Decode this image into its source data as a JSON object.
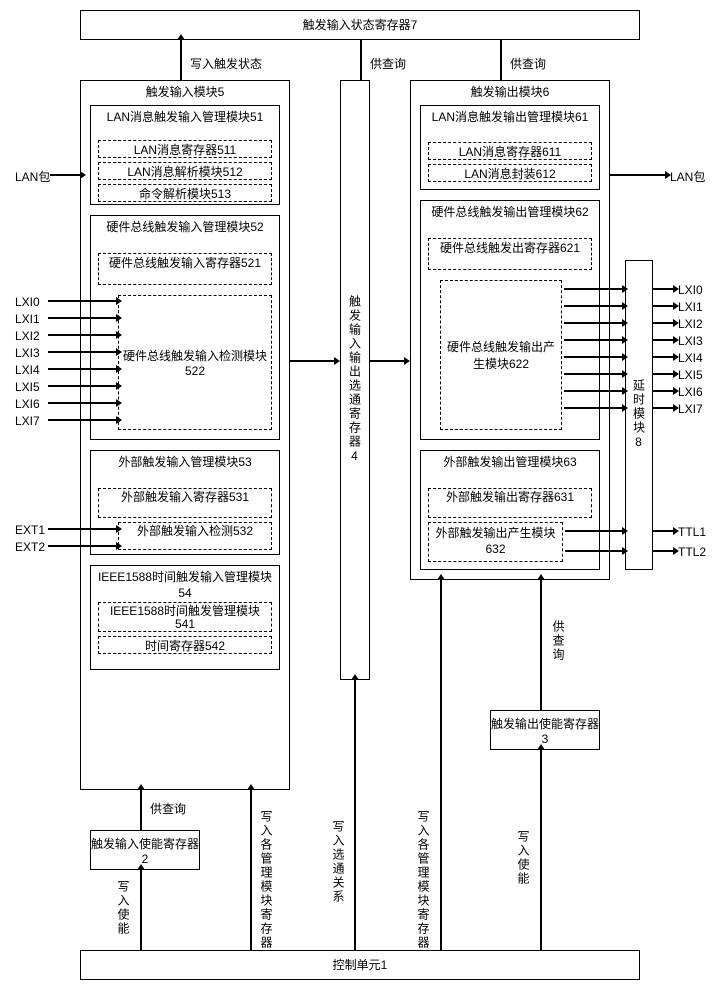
{
  "top_reg": "触发输入状态寄存器7",
  "write_state": "写入触发状态",
  "query": "供查询",
  "in_mod": "触发输入模块5",
  "lan_in": "LAN消息触发输入管理模块51",
  "lan_reg": "LAN消息寄存器511",
  "lan_parse": "LAN消息解析模块512",
  "cmd_parse": "命令解析模块513",
  "hw_in": "硬件总线触发输入管理模块52",
  "hw_in_reg": "硬件总线触发输入寄存器521",
  "hw_in_det": "硬件总线触发输入检测模块522",
  "ext_in": "外部触发输入管理模块53",
  "ext_in_reg": "外部触发输入寄存器531",
  "ext_in_det": "外部触发输入检测532",
  "ieee_in": "IEEE1588时间触发输入管理模块54",
  "ieee_mgr": "IEEE1588时间触发管理模块541",
  "time_reg": "时间寄存器542",
  "sel_reg": "触发输入输出选通寄存器4",
  "out_mod": "触发输出模块6",
  "lan_out": "LAN消息触发输出管理模块61",
  "lan_out_reg": "LAN消息寄存器611",
  "lan_pack": "LAN消息封装612",
  "hw_out": "硬件总线触发输出管理模块62",
  "hw_out_reg": "硬件总线触发出寄存器621",
  "hw_out_gen": "硬件总线触发输出产生模块622",
  "ext_out": "外部触发输出管理模块63",
  "ext_out_reg": "外部触发输出寄存器631",
  "ext_out_gen": "外部触发输出产生模块632",
  "delay": "延时模块8",
  "in_en": "触发输入使能寄存器2",
  "out_en": "触发输出使能寄存器3",
  "ctrl": "控制单元1",
  "lan_pkt": "LAN包",
  "lxi": [
    "LXI0",
    "LXI1",
    "LXI2",
    "LXI3",
    "LXI4",
    "LXI5",
    "LXI6",
    "LXI7"
  ],
  "ext": [
    "EXT1",
    "EXT2"
  ],
  "ttl": [
    "TTL1",
    "TTL2"
  ],
  "w_en": "写入使能",
  "w_reg": "写入各管理模块寄存器",
  "w_sel": "写入选通关系",
  "colors": {
    "border": "#000000",
    "bg": "#ffffff"
  }
}
